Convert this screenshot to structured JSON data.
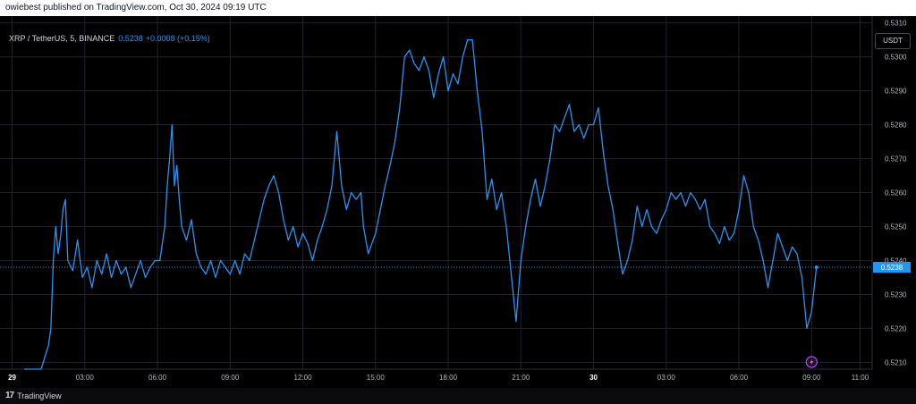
{
  "header": {
    "published_text": "owiebest published on TradingView.com, Oct 30, 2024 09:19 UTC"
  },
  "legend": {
    "symbol": "XRP / TetherUS, 5, BINANCE",
    "last_price": "0.5238",
    "change": "+0.0008 (+0.15%)"
  },
  "price_scale": {
    "currency": "USDT",
    "ticks": [
      "0.5310",
      "0.5300",
      "0.5290",
      "0.5280",
      "0.5270",
      "0.5260",
      "0.5250",
      "0.5240",
      "0.5230",
      "0.5220",
      "0.5210"
    ],
    "current_price_label": "0.5238"
  },
  "time_axis": {
    "ticks": [
      "29",
      "03:00",
      "06:00",
      "09:00",
      "12:00",
      "15:00",
      "18:00",
      "21:00",
      "30",
      "03:00",
      "06:00",
      "09:00",
      "11:00"
    ]
  },
  "footer": {
    "brand": "TradingView",
    "logo_text": "17"
  },
  "colors": {
    "line": "#2196f3",
    "background": "#000000",
    "grid": "#1e222d",
    "text": "#d1d4dc"
  },
  "chart_data": {
    "type": "line",
    "series": [
      {
        "name": "XRP / TetherUS, 5, BINANCE",
        "points": [
          [
            0.5,
            0.5208
          ],
          [
            1.2,
            0.5208
          ],
          [
            1.5,
            0.5215
          ],
          [
            1.6,
            0.522
          ],
          [
            1.7,
            0.524
          ],
          [
            1.8,
            0.525
          ],
          [
            1.9,
            0.5242
          ],
          [
            2.0,
            0.5247
          ],
          [
            2.1,
            0.5255
          ],
          [
            2.2,
            0.5258
          ],
          [
            2.3,
            0.524
          ],
          [
            2.5,
            0.5237
          ],
          [
            2.7,
            0.5246
          ],
          [
            2.9,
            0.5235
          ],
          [
            3.1,
            0.5238
          ],
          [
            3.3,
            0.5232
          ],
          [
            3.5,
            0.524
          ],
          [
            3.7,
            0.5236
          ],
          [
            3.9,
            0.5242
          ],
          [
            4.1,
            0.5235
          ],
          [
            4.3,
            0.524
          ],
          [
            4.5,
            0.5236
          ],
          [
            4.7,
            0.5238
          ],
          [
            4.9,
            0.5232
          ],
          [
            5.1,
            0.5236
          ],
          [
            5.3,
            0.524
          ],
          [
            5.5,
            0.5235
          ],
          [
            5.7,
            0.5238
          ],
          [
            5.9,
            0.524
          ],
          [
            6.1,
            0.524
          ],
          [
            6.3,
            0.525
          ],
          [
            6.4,
            0.5262
          ],
          [
            6.5,
            0.527
          ],
          [
            6.6,
            0.528
          ],
          [
            6.7,
            0.5262
          ],
          [
            6.8,
            0.5268
          ],
          [
            6.9,
            0.5258
          ],
          [
            7.0,
            0.525
          ],
          [
            7.2,
            0.5246
          ],
          [
            7.4,
            0.5252
          ],
          [
            7.6,
            0.5242
          ],
          [
            7.8,
            0.5238
          ],
          [
            8.0,
            0.5236
          ],
          [
            8.2,
            0.524
          ],
          [
            8.4,
            0.5235
          ],
          [
            8.6,
            0.524
          ],
          [
            8.8,
            0.5238
          ],
          [
            9.0,
            0.5236
          ],
          [
            9.2,
            0.524
          ],
          [
            9.4,
            0.5236
          ],
          [
            9.6,
            0.5242
          ],
          [
            9.8,
            0.524
          ],
          [
            10.0,
            0.5246
          ],
          [
            10.2,
            0.5252
          ],
          [
            10.4,
            0.5258
          ],
          [
            10.6,
            0.5262
          ],
          [
            10.8,
            0.5265
          ],
          [
            11.0,
            0.526
          ],
          [
            11.2,
            0.5252
          ],
          [
            11.4,
            0.5246
          ],
          [
            11.6,
            0.525
          ],
          [
            11.8,
            0.5244
          ],
          [
            12.0,
            0.5248
          ],
          [
            12.2,
            0.5245
          ],
          [
            12.4,
            0.524
          ],
          [
            12.6,
            0.5246
          ],
          [
            12.8,
            0.525
          ],
          [
            13.0,
            0.5255
          ],
          [
            13.2,
            0.5262
          ],
          [
            13.4,
            0.5278
          ],
          [
            13.6,
            0.5262
          ],
          [
            13.8,
            0.5255
          ],
          [
            14.0,
            0.526
          ],
          [
            14.2,
            0.5258
          ],
          [
            14.4,
            0.526
          ],
          [
            14.5,
            0.525
          ],
          [
            14.7,
            0.5242
          ],
          [
            15.0,
            0.5248
          ],
          [
            15.2,
            0.5255
          ],
          [
            15.4,
            0.5262
          ],
          [
            15.6,
            0.5268
          ],
          [
            15.8,
            0.5275
          ],
          [
            16.0,
            0.5285
          ],
          [
            16.2,
            0.53
          ],
          [
            16.4,
            0.5302
          ],
          [
            16.6,
            0.5298
          ],
          [
            16.8,
            0.5296
          ],
          [
            17.0,
            0.53
          ],
          [
            17.2,
            0.5296
          ],
          [
            17.4,
            0.5288
          ],
          [
            17.6,
            0.5295
          ],
          [
            17.8,
            0.53
          ],
          [
            18.0,
            0.529
          ],
          [
            18.2,
            0.5295
          ],
          [
            18.4,
            0.5292
          ],
          [
            18.6,
            0.53
          ],
          [
            18.8,
            0.5305
          ],
          [
            19.0,
            0.5305
          ],
          [
            19.2,
            0.529
          ],
          [
            19.4,
            0.5278
          ],
          [
            19.6,
            0.5258
          ],
          [
            19.8,
            0.5264
          ],
          [
            20.0,
            0.5255
          ],
          [
            20.2,
            0.526
          ],
          [
            20.4,
            0.525
          ],
          [
            20.6,
            0.5236
          ],
          [
            20.8,
            0.5222
          ],
          [
            21.0,
            0.524
          ],
          [
            21.2,
            0.525
          ],
          [
            21.4,
            0.5258
          ],
          [
            21.6,
            0.5264
          ],
          [
            21.8,
            0.5256
          ],
          [
            22.0,
            0.5262
          ],
          [
            22.2,
            0.527
          ],
          [
            22.4,
            0.528
          ],
          [
            22.6,
            0.5278
          ],
          [
            22.8,
            0.5282
          ],
          [
            23.0,
            0.5286
          ],
          [
            23.2,
            0.5278
          ],
          [
            23.4,
            0.528
          ],
          [
            23.6,
            0.5276
          ],
          [
            23.8,
            0.528
          ],
          [
            24.0,
            0.528
          ],
          [
            24.2,
            0.5285
          ],
          [
            24.4,
            0.5272
          ],
          [
            24.6,
            0.5262
          ],
          [
            24.8,
            0.5255
          ],
          [
            25.0,
            0.5245
          ],
          [
            25.2,
            0.5236
          ],
          [
            25.4,
            0.524
          ],
          [
            25.6,
            0.5246
          ],
          [
            25.8,
            0.5256
          ],
          [
            26.0,
            0.525
          ],
          [
            26.2,
            0.5255
          ],
          [
            26.4,
            0.525
          ],
          [
            26.6,
            0.5248
          ],
          [
            26.8,
            0.5252
          ],
          [
            27.0,
            0.5255
          ],
          [
            27.2,
            0.526
          ],
          [
            27.4,
            0.5258
          ],
          [
            27.6,
            0.526
          ],
          [
            27.8,
            0.5256
          ],
          [
            28.0,
            0.526
          ],
          [
            28.2,
            0.5258
          ],
          [
            28.4,
            0.5255
          ],
          [
            28.6,
            0.5258
          ],
          [
            28.8,
            0.525
          ],
          [
            29.0,
            0.5248
          ],
          [
            29.2,
            0.5245
          ],
          [
            29.4,
            0.525
          ],
          [
            29.6,
            0.5246
          ],
          [
            29.8,
            0.5248
          ],
          [
            30.0,
            0.5255
          ],
          [
            30.2,
            0.5265
          ],
          [
            30.4,
            0.526
          ],
          [
            30.6,
            0.525
          ],
          [
            30.8,
            0.5246
          ],
          [
            31.0,
            0.524
          ],
          [
            31.2,
            0.5232
          ],
          [
            31.4,
            0.524
          ],
          [
            31.6,
            0.5248
          ],
          [
            31.8,
            0.5244
          ],
          [
            32.0,
            0.524
          ],
          [
            32.2,
            0.5244
          ],
          [
            32.4,
            0.5242
          ],
          [
            32.6,
            0.5235
          ],
          [
            32.8,
            0.522
          ],
          [
            33.0,
            0.5225
          ],
          [
            33.2,
            0.5238
          ]
        ]
      }
    ],
    "x_ticks": [
      {
        "label": "29",
        "x": 0
      },
      {
        "label": "03:00",
        "x": 3
      },
      {
        "label": "06:00",
        "x": 6
      },
      {
        "label": "09:00",
        "x": 9
      },
      {
        "label": "12:00",
        "x": 12
      },
      {
        "label": "15:00",
        "x": 15
      },
      {
        "label": "18:00",
        "x": 18
      },
      {
        "label": "21:00",
        "x": 21
      },
      {
        "label": "30",
        "x": 24
      },
      {
        "label": "03:00",
        "x": 27
      },
      {
        "label": "06:00",
        "x": 30
      },
      {
        "label": "09:00",
        "x": 33
      },
      {
        "label": "11:00",
        "x": 35
      }
    ],
    "xlim": [
      -0.5,
      35.5
    ],
    "ylim": [
      0.5208,
      0.5312
    ],
    "last_value": 0.5238,
    "grid": true
  }
}
